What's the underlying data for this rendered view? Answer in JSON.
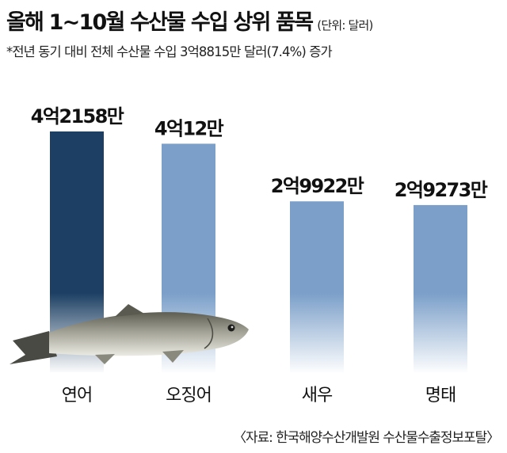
{
  "header": {
    "title": "올해 1~10월 수산물 수입 상위 품목",
    "unit": "(단위: 달러)",
    "note": "*전년 동기 대비 전체 수산물 수입 3억8815만 달러(7.4%) 증가"
  },
  "source": "〈자료: 한국해양수산개발원 수산물수출정보포탈〉",
  "colors": {
    "highlight_bar": "#1c3f63",
    "bar": "#7b9fc9"
  },
  "chart_data": {
    "type": "bar",
    "categories": [
      "연어",
      "오징어",
      "새우",
      "명태"
    ],
    "values": [
      421580000,
      400120000,
      299220000,
      292730000
    ],
    "data_labels": [
      "4억2158만",
      "4억12만",
      "2억9922만",
      "2억9273만"
    ],
    "highlight": "연어",
    "illustration": "salmon",
    "title": "",
    "xlabel": "",
    "ylabel": ""
  }
}
